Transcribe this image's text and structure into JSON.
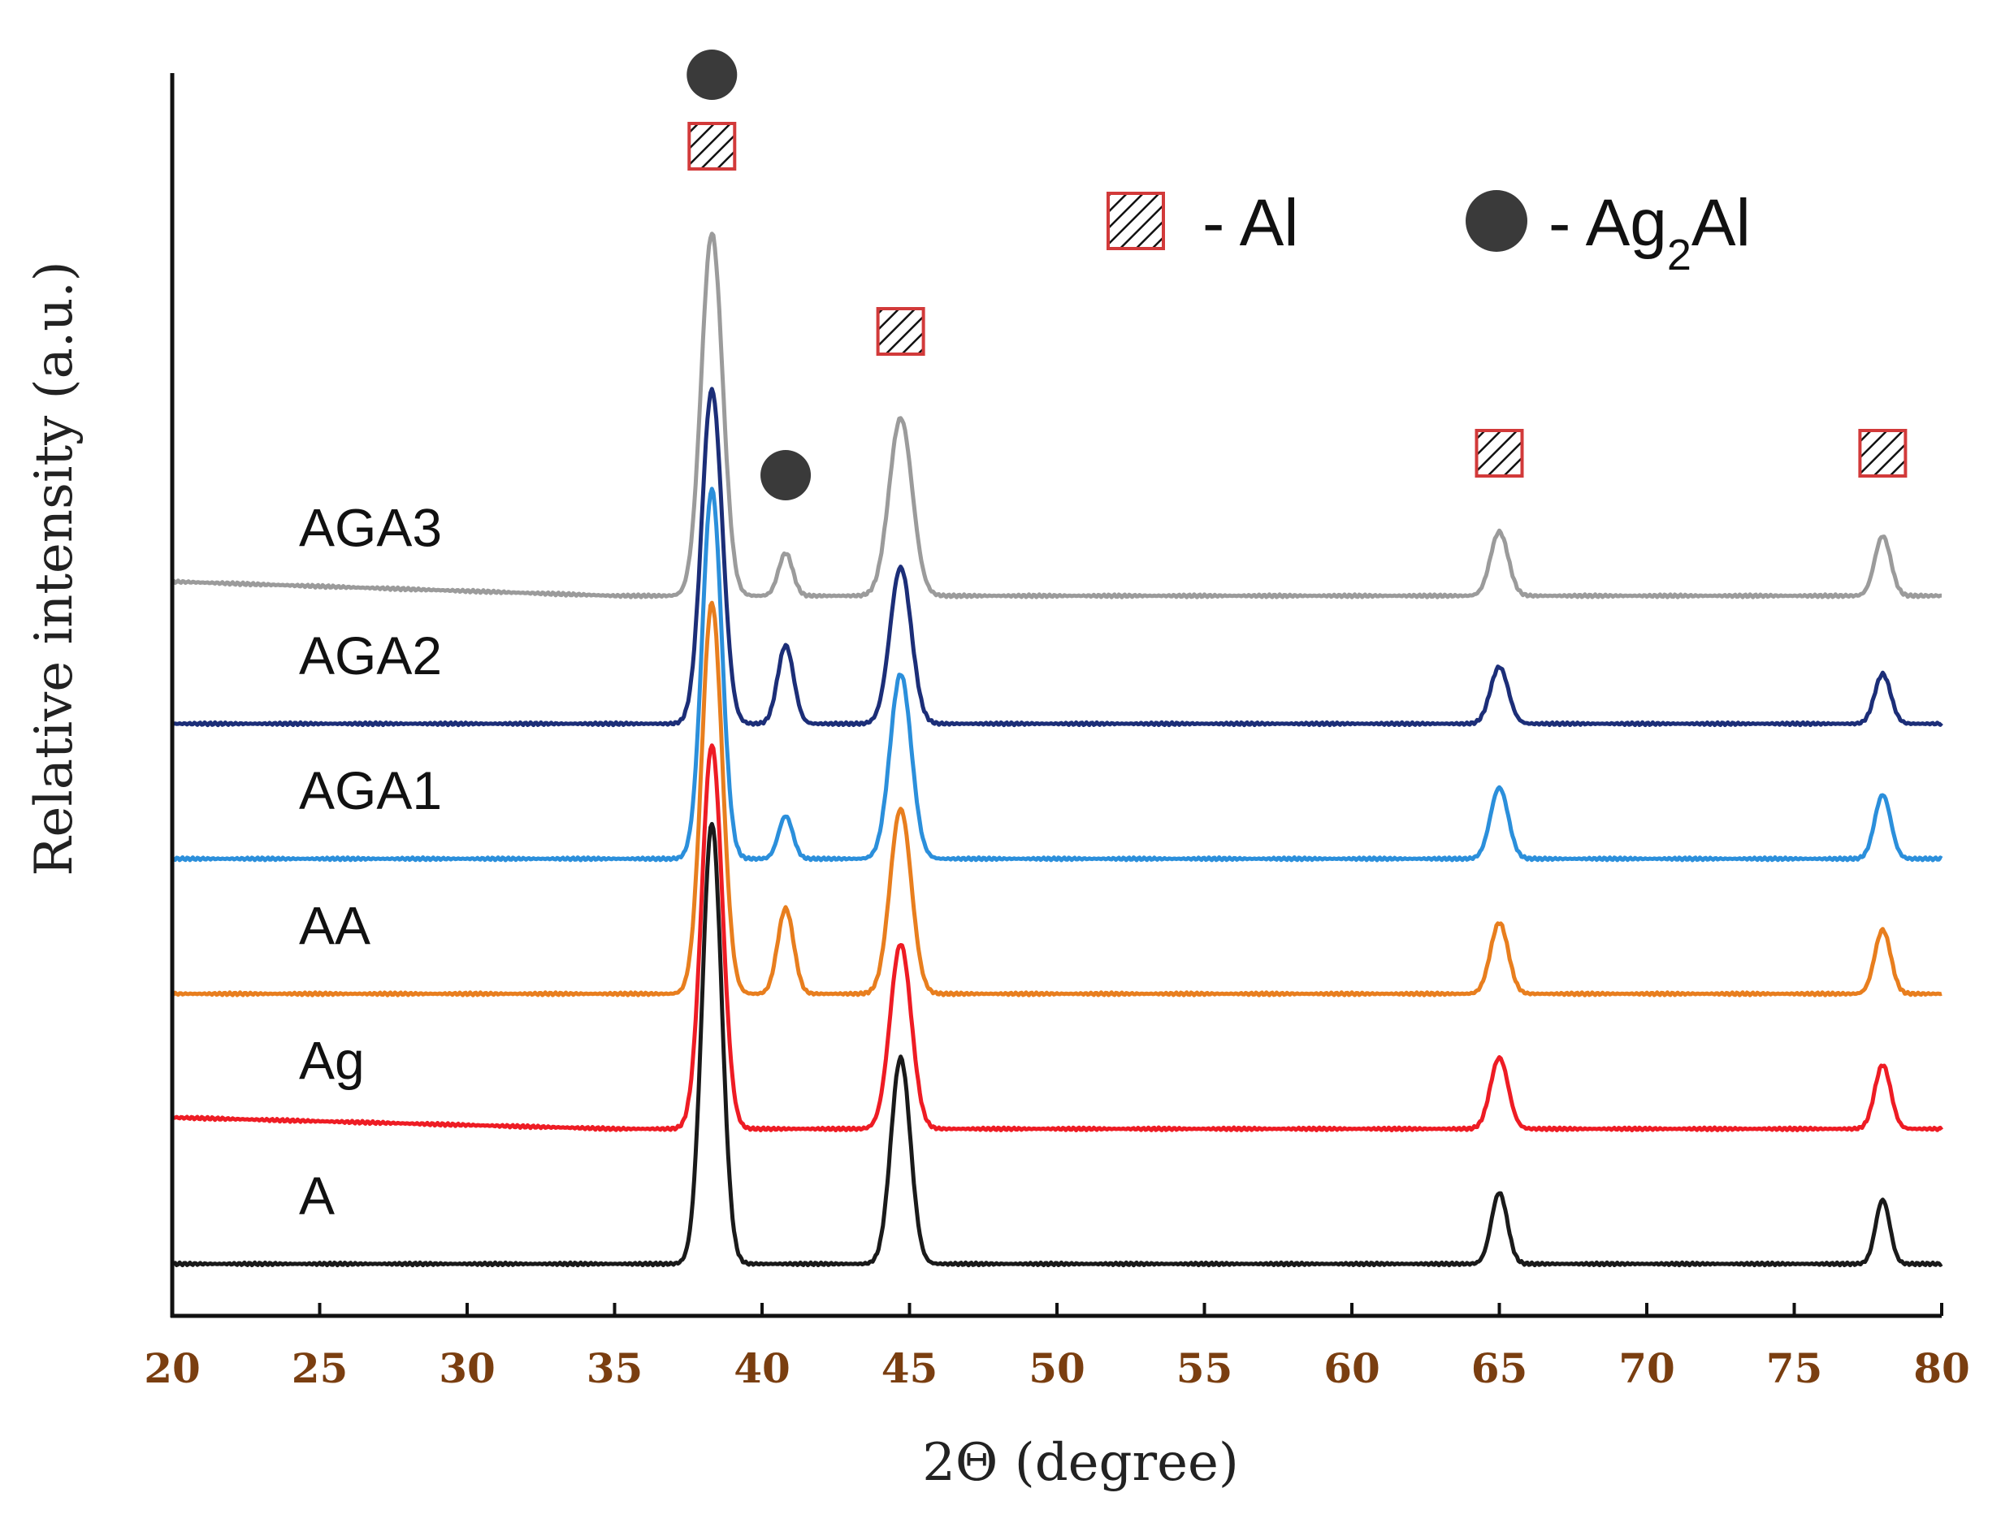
{
  "chart_data": {
    "type": "line",
    "title": "",
    "xlabel": "2Θ (degree)",
    "ylabel": "Relative intensity (a.u.)",
    "xlim": [
      20,
      80
    ],
    "x_ticks": [
      20,
      25,
      30,
      35,
      40,
      45,
      50,
      55,
      60,
      65,
      70,
      75,
      80
    ],
    "y_ticks": [],
    "grid": false,
    "legend": {
      "placement": "top-right",
      "entries": [
        {
          "marker": "hatched-square",
          "label": "- Al"
        },
        {
          "marker": "filled-circle",
          "label_prefix": "- Ag",
          "label_subscript": "2",
          "label_suffix": "Al"
        }
      ]
    },
    "phases": {
      "Al": {
        "marker": "hatched-square",
        "peaks_2theta": [
          38.3,
          44.7,
          65.0,
          78.0
        ]
      },
      "Ag2Al": {
        "marker": "filled-circle",
        "peaks_2theta": [
          38.3,
          40.8
        ]
      }
    },
    "series": [
      {
        "name": "A",
        "color": "#1a1a1a",
        "baseline": 0.0,
        "start_offset": 0.0,
        "peaks": [
          {
            "x": 38.3,
            "h": 3.1,
            "w": 0.55
          },
          {
            "x": 44.7,
            "h": 1.45,
            "w": 0.55
          },
          {
            "x": 65.0,
            "h": 0.5,
            "w": 0.45
          },
          {
            "x": 78.0,
            "h": 0.45,
            "w": 0.4
          }
        ]
      },
      {
        "name": "Ag",
        "color": "#ee1c24",
        "baseline": 0.95,
        "start_offset": 0.08,
        "peaks": [
          {
            "x": 38.3,
            "h": 2.7,
            "w": 0.58
          },
          {
            "x": 44.7,
            "h": 1.3,
            "w": 0.6
          },
          {
            "x": 65.0,
            "h": 0.5,
            "w": 0.5
          },
          {
            "x": 78.0,
            "h": 0.45,
            "w": 0.45
          }
        ]
      },
      {
        "name": "AA",
        "color": "#e87e1e",
        "baseline": 1.9,
        "start_offset": 0.0,
        "peaks": [
          {
            "x": 38.3,
            "h": 2.75,
            "w": 0.58
          },
          {
            "x": 40.8,
            "h": 0.6,
            "w": 0.45
          },
          {
            "x": 44.7,
            "h": 1.3,
            "w": 0.6
          },
          {
            "x": 65.0,
            "h": 0.5,
            "w": 0.5
          },
          {
            "x": 78.0,
            "h": 0.45,
            "w": 0.45
          }
        ]
      },
      {
        "name": "AGA1",
        "color": "#2b8fdb",
        "baseline": 2.85,
        "start_offset": 0.0,
        "peaks": [
          {
            "x": 38.3,
            "h": 2.6,
            "w": 0.55
          },
          {
            "x": 40.8,
            "h": 0.3,
            "w": 0.4
          },
          {
            "x": 44.7,
            "h": 1.3,
            "w": 0.6
          },
          {
            "x": 65.0,
            "h": 0.5,
            "w": 0.5
          },
          {
            "x": 78.0,
            "h": 0.45,
            "w": 0.45
          }
        ]
      },
      {
        "name": "AGA2",
        "color": "#1c2e78",
        "baseline": 3.8,
        "start_offset": 0.0,
        "peaks": [
          {
            "x": 38.3,
            "h": 2.35,
            "w": 0.58
          },
          {
            "x": 40.8,
            "h": 0.55,
            "w": 0.45
          },
          {
            "x": 44.7,
            "h": 1.1,
            "w": 0.6
          },
          {
            "x": 65.0,
            "h": 0.4,
            "w": 0.5
          },
          {
            "x": 78.0,
            "h": 0.35,
            "w": 0.45
          }
        ]
      },
      {
        "name": "AGA3",
        "color": "#9b9b9b",
        "baseline": 4.7,
        "start_offset": 0.1,
        "peaks": [
          {
            "x": 38.3,
            "h": 2.55,
            "w": 0.6
          },
          {
            "x": 40.8,
            "h": 0.3,
            "w": 0.4
          },
          {
            "x": 44.7,
            "h": 1.25,
            "w": 0.65
          },
          {
            "x": 65.0,
            "h": 0.45,
            "w": 0.5
          },
          {
            "x": 78.0,
            "h": 0.42,
            "w": 0.45
          }
        ]
      }
    ],
    "annotations": [
      {
        "marker": "filled-circle",
        "x": 38.3,
        "level": "top"
      },
      {
        "marker": "hatched-square",
        "x": 38.3,
        "level": "top"
      },
      {
        "marker": "filled-circle",
        "x": 40.8,
        "level": "mid"
      },
      {
        "marker": "hatched-square",
        "x": 44.7,
        "level": "mid"
      },
      {
        "marker": "hatched-square",
        "x": 65.0,
        "level": "low"
      },
      {
        "marker": "hatched-square",
        "x": 78.0,
        "level": "low"
      }
    ]
  }
}
